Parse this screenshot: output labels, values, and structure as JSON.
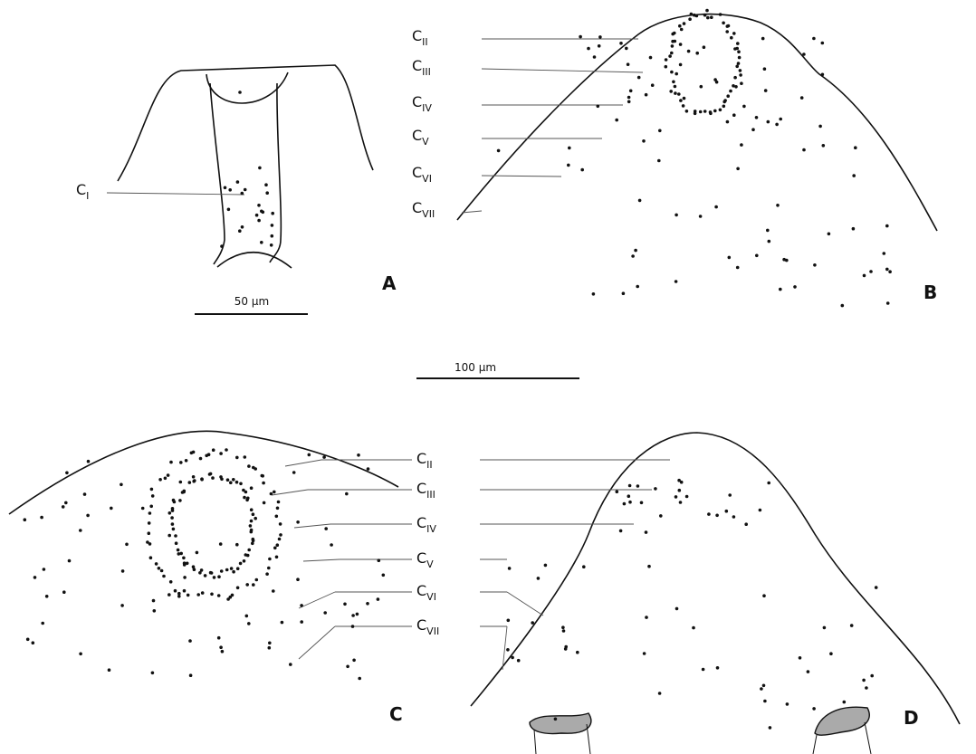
{
  "panels": [
    {
      "letter": "A",
      "labels": [
        {
          "main": "C",
          "sub": "I"
        }
      ],
      "scale_bar": "50 µm"
    },
    {
      "letter": "B",
      "labels": [
        {
          "main": "C",
          "sub": "II"
        },
        {
          "main": "C",
          "sub": "III"
        },
        {
          "main": "C",
          "sub": "IV"
        },
        {
          "main": "C",
          "sub": "V"
        },
        {
          "main": "C",
          "sub": "VI"
        },
        {
          "main": "C",
          "sub": "VII"
        }
      ]
    },
    {
      "letter": "C",
      "labels": [
        {
          "main": "C",
          "sub": "II"
        },
        {
          "main": "C",
          "sub": "III"
        },
        {
          "main": "C",
          "sub": "IV"
        },
        {
          "main": "C",
          "sub": "V"
        },
        {
          "main": "C",
          "sub": "VI"
        },
        {
          "main": "C",
          "sub": "VII"
        }
      ]
    },
    {
      "letter": "D"
    }
  ],
  "scale_bar": "100 µm"
}
